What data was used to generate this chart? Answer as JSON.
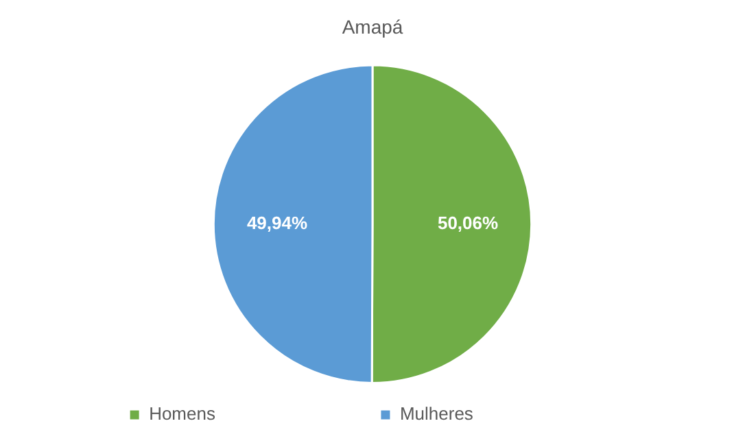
{
  "chart_data": {
    "type": "pie",
    "title": "Amapá",
    "categories": [
      "Homens",
      "Mulheres"
    ],
    "values": [
      50.06,
      49.94
    ],
    "value_labels": [
      "50,06%",
      "49,94%"
    ],
    "colors": [
      "#70ad47",
      "#5b9bd5"
    ],
    "legend": "bottom"
  }
}
